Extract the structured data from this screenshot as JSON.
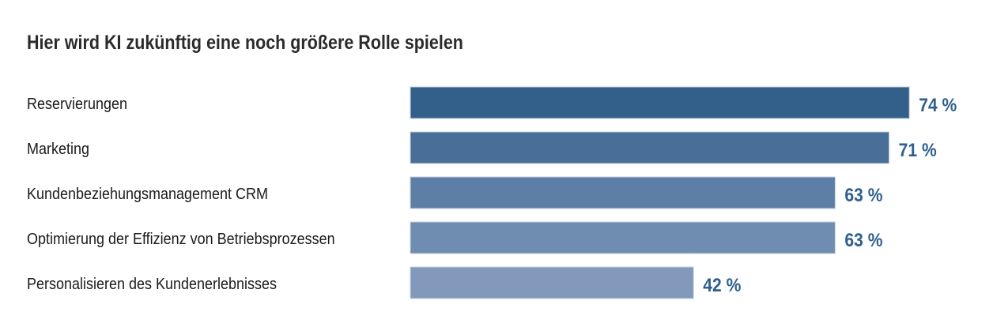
{
  "chart_data": {
    "type": "bar",
    "orientation": "horizontal",
    "title": "Hier wird KI zukünftig eine noch größere Rolle spielen",
    "categories": [
      "Reservierungen",
      "Marketing",
      "Kundenbeziehungsmanagement CRM",
      "Optimierung der Effizienz von Betriebsprozessen",
      "Personalisieren des Kundenerlebnisses"
    ],
    "values": [
      74,
      71,
      63,
      63,
      42
    ],
    "value_labels": [
      "74 %",
      "71 %",
      "63 %",
      "63 %",
      "42 %"
    ],
    "unit": "%",
    "xlim": [
      0,
      100
    ],
    "grid": false,
    "legend": "none",
    "colors": {
      "bars": [
        "#33608a",
        "#496e97",
        "#5d7ea5",
        "#6f8db0",
        "#8399bb"
      ],
      "value_text": "#2f5f8e",
      "bar_border": "#c9d3e0"
    }
  }
}
